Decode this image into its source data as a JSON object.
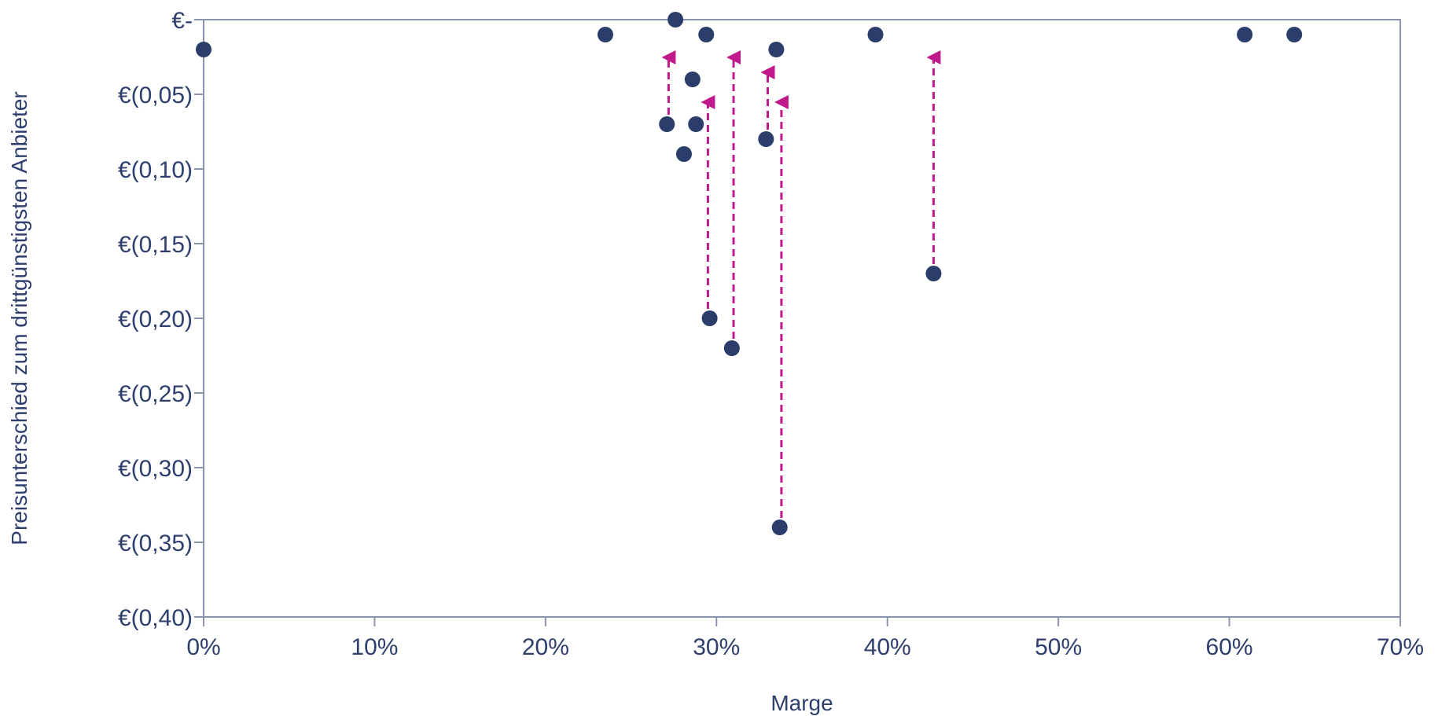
{
  "chart_data": {
    "type": "scatter",
    "title": "",
    "xlabel": "Marge",
    "ylabel": "Preisunterschied zum drittgünstigsten Anbieter",
    "xlim": [
      0,
      0.7
    ],
    "ylim": [
      -0.4,
      0
    ],
    "x_ticks": [
      {
        "value": 0.0,
        "label": "0%"
      },
      {
        "value": 0.1,
        "label": "10%"
      },
      {
        "value": 0.2,
        "label": "20%"
      },
      {
        "value": 0.3,
        "label": "30%"
      },
      {
        "value": 0.4,
        "label": "40%"
      },
      {
        "value": 0.5,
        "label": "50%"
      },
      {
        "value": 0.6,
        "label": "60%"
      },
      {
        "value": 0.7,
        "label": "70%"
      }
    ],
    "y_ticks": [
      {
        "value": 0.0,
        "label": "€-"
      },
      {
        "value": -0.05,
        "label": "€(0,05)"
      },
      {
        "value": -0.1,
        "label": "€(0,10)"
      },
      {
        "value": -0.15,
        "label": "€(0,15)"
      },
      {
        "value": -0.2,
        "label": "€(0,20)"
      },
      {
        "value": -0.25,
        "label": "€(0,25)"
      },
      {
        "value": -0.3,
        "label": "€(0,30)"
      },
      {
        "value": -0.35,
        "label": "€(0,35)"
      },
      {
        "value": -0.4,
        "label": "€(0,40)"
      }
    ],
    "grid": false,
    "points": [
      {
        "x": 0.0,
        "y": -0.02
      },
      {
        "x": 0.235,
        "y": -0.01
      },
      {
        "x": 0.276,
        "y": 0.0
      },
      {
        "x": 0.294,
        "y": -0.01
      },
      {
        "x": 0.286,
        "y": -0.04
      },
      {
        "x": 0.271,
        "y": -0.07
      },
      {
        "x": 0.288,
        "y": -0.07
      },
      {
        "x": 0.281,
        "y": -0.09
      },
      {
        "x": 0.296,
        "y": -0.2
      },
      {
        "x": 0.309,
        "y": -0.22
      },
      {
        "x": 0.329,
        "y": -0.08
      },
      {
        "x": 0.335,
        "y": -0.02
      },
      {
        "x": 0.337,
        "y": -0.34
      },
      {
        "x": 0.393,
        "y": -0.01
      },
      {
        "x": 0.427,
        "y": -0.17
      },
      {
        "x": 0.609,
        "y": -0.01
      },
      {
        "x": 0.638,
        "y": -0.01
      }
    ],
    "arrows": [
      {
        "x": 0.272,
        "from": -0.07,
        "to": -0.02
      },
      {
        "x": 0.295,
        "from": -0.2,
        "to": -0.05
      },
      {
        "x": 0.31,
        "from": -0.22,
        "to": -0.02
      },
      {
        "x": 0.33,
        "from": -0.08,
        "to": -0.03
      },
      {
        "x": 0.338,
        "from": -0.34,
        "to": -0.05
      },
      {
        "x": 0.427,
        "from": -0.17,
        "to": -0.02
      }
    ],
    "colors": {
      "point": "#2b3d6b",
      "arrow": "#c0198b",
      "axis": "#8a94ad",
      "text": "#2e3f6e"
    }
  }
}
